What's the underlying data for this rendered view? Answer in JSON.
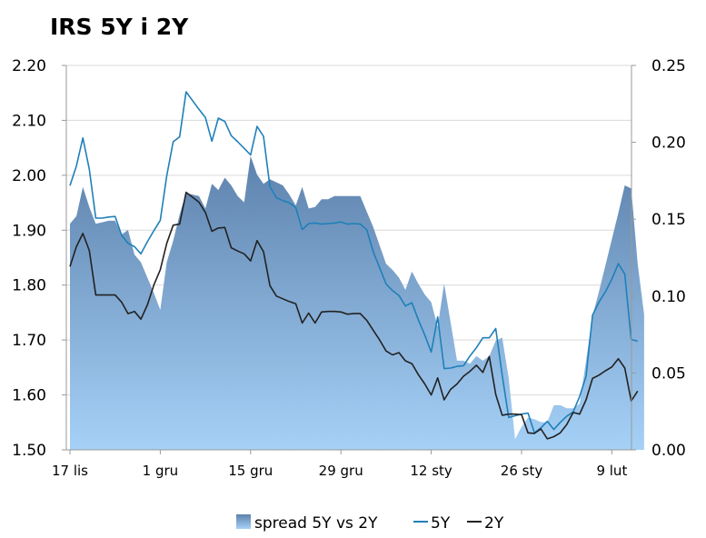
{
  "chart_data": {
    "type": "line",
    "title": "IRS 5Y i 2Y",
    "y_left": {
      "min": 1.5,
      "max": 2.2,
      "ticks": [
        "1.50",
        "1.60",
        "1.70",
        "1.80",
        "1.90",
        "2.00",
        "2.10",
        "2.20"
      ]
    },
    "y_right": {
      "min": 0,
      "max": 0.25,
      "ticks": [
        "0.00",
        "0.05",
        "0.10",
        "0.15",
        "0.20",
        "0.25"
      ]
    },
    "x_axis": {
      "start": "17 lis",
      "period_days": 91,
      "ticks": [
        {
          "label": "17 lis",
          "day": 0
        },
        {
          "label": "1 gru",
          "day": 14
        },
        {
          "label": "15 gru",
          "day": 28
        },
        {
          "label": "29 gru",
          "day": 42
        },
        {
          "label": "12 sty",
          "day": 56
        },
        {
          "label": "26 sty",
          "day": 70
        },
        {
          "label": "9 lut",
          "day": 84
        }
      ]
    },
    "grid": true,
    "legend_position": "bottom",
    "series": [
      {
        "name": "spread 5Y vs 2Y",
        "kind": "area",
        "axis": "right",
        "color_top": "#5d82ad",
        "color_bottom": "#a6d1f7",
        "points": [
          [
            0,
            0.147
          ],
          [
            1,
            0.152
          ],
          [
            2,
            0.171
          ],
          [
            3,
            0.158
          ],
          [
            4,
            0.147
          ],
          [
            5,
            0.148
          ],
          [
            6,
            0.149
          ],
          [
            7,
            0.149
          ],
          [
            8,
            0.14
          ],
          [
            9,
            0.143
          ],
          [
            10,
            0.127
          ],
          [
            11,
            0.122
          ],
          [
            12,
            0.112
          ],
          [
            13,
            0.102
          ],
          [
            14,
            0.091
          ],
          [
            15,
            0.122
          ],
          [
            16,
            0.136
          ],
          [
            17,
            0.153
          ],
          [
            18,
            0.167
          ],
          [
            19,
            0.166
          ],
          [
            20,
            0.165
          ],
          [
            21,
            0.157
          ],
          [
            22,
            0.173
          ],
          [
            23,
            0.169
          ],
          [
            24,
            0.177
          ],
          [
            25,
            0.172
          ],
          [
            26,
            0.165
          ],
          [
            27,
            0.161
          ],
          [
            28,
            0.191
          ],
          [
            29,
            0.179
          ],
          [
            30,
            0.173
          ],
          [
            31,
            0.176
          ],
          [
            32,
            0.174
          ],
          [
            33,
            0.172
          ],
          [
            34,
            0.166
          ],
          [
            35,
            0.159
          ],
          [
            36,
            0.171
          ],
          [
            37,
            0.157
          ],
          [
            38,
            0.158
          ],
          [
            39,
            0.163
          ],
          [
            40,
            0.163
          ],
          [
            41,
            0.165
          ],
          [
            42,
            0.165
          ],
          [
            43,
            0.165
          ],
          [
            44,
            0.165
          ],
          [
            45,
            0.165
          ],
          [
            46,
            0.155
          ],
          [
            47,
            0.145
          ],
          [
            48,
            0.133
          ],
          [
            49,
            0.121
          ],
          [
            50,
            0.117
          ],
          [
            51,
            0.112
          ],
          [
            52,
            0.104
          ],
          [
            53,
            0.116
          ],
          [
            54,
            0.108
          ],
          [
            55,
            0.101
          ],
          [
            56,
            0.096
          ],
          [
            57,
            0.08
          ],
          [
            58,
            0.108
          ],
          [
            59,
            0.083
          ],
          [
            60,
            0.058
          ],
          [
            61,
            0.058
          ],
          [
            62,
            0.056
          ],
          [
            63,
            0.061
          ],
          [
            64,
            0.058
          ],
          [
            65,
            0.061
          ],
          [
            66,
            0.071
          ],
          [
            67,
            0.073
          ],
          [
            68,
            0.047
          ],
          [
            69,
            0.007
          ],
          [
            70,
            0.015
          ],
          [
            71,
            0.021
          ],
          [
            72,
            0.02
          ],
          [
            73,
            0.018
          ],
          [
            74,
            0.018
          ],
          [
            75,
            0.029
          ],
          [
            76,
            0.029
          ],
          [
            77,
            0.027
          ],
          [
            78,
            0.027
          ],
          [
            79,
            0.03
          ],
          [
            80,
            0.058
          ],
          [
            81,
            0.087
          ],
          [
            82,
            0.103
          ],
          [
            83,
            0.12
          ],
          [
            84,
            0.137
          ],
          [
            85,
            0.154
          ],
          [
            86,
            0.172
          ],
          [
            87,
            0.17
          ],
          [
            88,
            0.121
          ],
          [
            89,
            0.088
          ]
        ]
      },
      {
        "name": "5Y",
        "kind": "line",
        "axis": "left",
        "color": "#1f80b8",
        "points": [
          [
            0,
            1.981
          ],
          [
            1,
            2.017
          ],
          [
            2,
            2.068
          ],
          [
            3,
            2.011
          ],
          [
            4,
            1.922
          ],
          [
            5,
            1.922
          ],
          [
            6,
            1.924
          ],
          [
            7,
            1.925
          ],
          [
            8,
            1.891
          ],
          [
            9,
            1.876
          ],
          [
            10,
            1.87
          ],
          [
            11,
            1.857
          ],
          [
            12,
            1.879
          ],
          [
            13,
            1.899
          ],
          [
            14,
            1.918
          ],
          [
            15,
            1.999
          ],
          [
            16,
            2.061
          ],
          [
            17,
            2.07
          ],
          [
            18,
            2.152
          ],
          [
            19,
            2.136
          ],
          [
            20,
            2.12
          ],
          [
            21,
            2.105
          ],
          [
            22,
            2.062
          ],
          [
            23,
            2.104
          ],
          [
            24,
            2.098
          ],
          [
            25,
            2.072
          ],
          [
            26,
            2.061
          ],
          [
            27,
            2.049
          ],
          [
            28,
            2.037
          ],
          [
            29,
            2.089
          ],
          [
            30,
            2.071
          ],
          [
            31,
            1.979
          ],
          [
            32,
            1.959
          ],
          [
            33,
            1.954
          ],
          [
            34,
            1.95
          ],
          [
            35,
            1.941
          ],
          [
            36,
            1.901
          ],
          [
            37,
            1.912
          ],
          [
            38,
            1.913
          ],
          [
            39,
            1.911
          ],
          [
            40,
            1.912
          ],
          [
            41,
            1.913
          ],
          [
            42,
            1.915
          ],
          [
            43,
            1.911
          ],
          [
            44,
            1.912
          ],
          [
            45,
            1.911
          ],
          [
            46,
            1.901
          ],
          [
            47,
            1.861
          ],
          [
            48,
            1.832
          ],
          [
            49,
            1.802
          ],
          [
            50,
            1.79
          ],
          [
            51,
            1.781
          ],
          [
            52,
            1.762
          ],
          [
            53,
            1.768
          ],
          [
            54,
            1.737
          ],
          [
            55,
            1.709
          ],
          [
            56,
            1.678
          ],
          [
            57,
            1.742
          ],
          [
            58,
            1.648
          ],
          [
            59,
            1.649
          ],
          [
            60,
            1.652
          ],
          [
            61,
            1.653
          ],
          [
            62,
            1.671
          ],
          [
            63,
            1.686
          ],
          [
            64,
            1.704
          ],
          [
            65,
            1.704
          ],
          [
            66,
            1.721
          ],
          [
            67,
            1.636
          ],
          [
            68,
            1.559
          ],
          [
            69,
            1.562
          ],
          [
            70,
            1.565
          ],
          [
            71,
            1.567
          ],
          [
            72,
            1.531
          ],
          [
            73,
            1.54
          ],
          [
            74,
            1.552
          ],
          [
            75,
            1.537
          ],
          [
            76,
            1.55
          ],
          [
            77,
            1.561
          ],
          [
            78,
            1.569
          ],
          [
            79,
            1.597
          ],
          [
            80,
            1.634
          ],
          [
            81,
            1.745
          ],
          [
            82,
            1.769
          ],
          [
            83,
            1.788
          ],
          [
            84,
            1.811
          ],
          [
            85,
            1.839
          ],
          [
            86,
            1.82
          ],
          [
            87,
            1.701
          ],
          [
            88,
            1.698
          ]
        ]
      },
      {
        "name": "2Y",
        "kind": "line",
        "axis": "left",
        "color": "#222222",
        "points": [
          [
            0,
            1.834
          ],
          [
            1,
            1.87
          ],
          [
            2,
            1.894
          ],
          [
            3,
            1.863
          ],
          [
            4,
            1.782
          ],
          [
            5,
            1.782
          ],
          [
            6,
            1.782
          ],
          [
            7,
            1.782
          ],
          [
            8,
            1.769
          ],
          [
            9,
            1.748
          ],
          [
            10,
            1.752
          ],
          [
            11,
            1.738
          ],
          [
            12,
            1.764
          ],
          [
            13,
            1.8
          ],
          [
            14,
            1.828
          ],
          [
            15,
            1.876
          ],
          [
            16,
            1.909
          ],
          [
            17,
            1.911
          ],
          [
            18,
            1.969
          ],
          [
            19,
            1.96
          ],
          [
            20,
            1.951
          ],
          [
            21,
            1.932
          ],
          [
            22,
            1.898
          ],
          [
            23,
            1.904
          ],
          [
            24,
            1.905
          ],
          [
            25,
            1.868
          ],
          [
            26,
            1.862
          ],
          [
            27,
            1.857
          ],
          [
            28,
            1.844
          ],
          [
            29,
            1.881
          ],
          [
            30,
            1.861
          ],
          [
            31,
            1.799
          ],
          [
            32,
            1.78
          ],
          [
            33,
            1.775
          ],
          [
            34,
            1.77
          ],
          [
            35,
            1.766
          ],
          [
            36,
            1.731
          ],
          [
            37,
            1.749
          ],
          [
            38,
            1.731
          ],
          [
            39,
            1.751
          ],
          [
            40,
            1.752
          ],
          [
            41,
            1.752
          ],
          [
            42,
            1.751
          ],
          [
            43,
            1.747
          ],
          [
            44,
            1.748
          ],
          [
            45,
            1.748
          ],
          [
            46,
            1.736
          ],
          [
            47,
            1.718
          ],
          [
            48,
            1.7
          ],
          [
            49,
            1.68
          ],
          [
            50,
            1.673
          ],
          [
            51,
            1.677
          ],
          [
            52,
            1.662
          ],
          [
            53,
            1.657
          ],
          [
            54,
            1.637
          ],
          [
            55,
            1.62
          ],
          [
            56,
            1.6
          ],
          [
            57,
            1.631
          ],
          [
            58,
            1.591
          ],
          [
            59,
            1.61
          ],
          [
            60,
            1.62
          ],
          [
            61,
            1.634
          ],
          [
            62,
            1.643
          ],
          [
            63,
            1.654
          ],
          [
            64,
            1.641
          ],
          [
            65,
            1.67
          ],
          [
            66,
            1.601
          ],
          [
            67,
            1.563
          ],
          [
            68,
            1.565
          ],
          [
            69,
            1.565
          ],
          [
            70,
            1.564
          ],
          [
            71,
            1.531
          ],
          [
            72,
            1.53
          ],
          [
            73,
            1.538
          ],
          [
            74,
            1.52
          ],
          [
            75,
            1.524
          ],
          [
            76,
            1.531
          ],
          [
            77,
            1.546
          ],
          [
            78,
            1.568
          ],
          [
            79,
            1.565
          ],
          [
            80,
            1.591
          ],
          [
            81,
            1.63
          ],
          [
            82,
            1.636
          ],
          [
            83,
            1.644
          ],
          [
            84,
            1.651
          ],
          [
            85,
            1.666
          ],
          [
            86,
            1.649
          ],
          [
            87,
            1.589
          ],
          [
            88,
            1.607
          ]
        ]
      }
    ],
    "legend": [
      {
        "label": "spread 5Y vs 2Y",
        "kind": "area"
      },
      {
        "label": "5Y",
        "kind": "line",
        "color": "#1f80b8"
      },
      {
        "label": "2Y",
        "kind": "line",
        "color": "#222222"
      }
    ]
  }
}
